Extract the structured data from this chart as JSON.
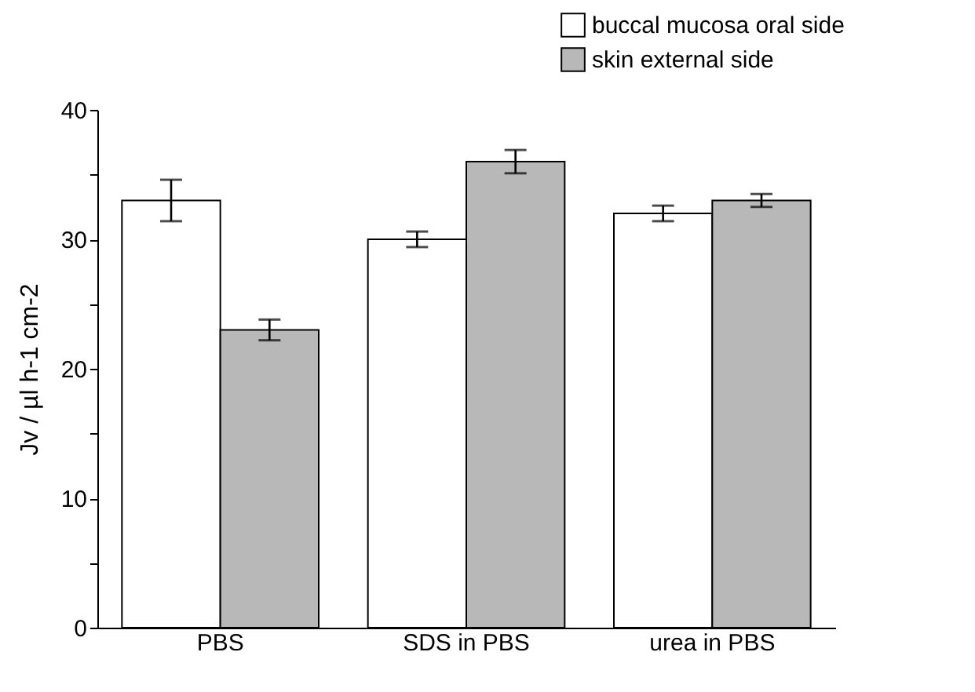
{
  "chart_data": {
    "type": "bar",
    "ylabel": "Jv / µl h-1 cm-2",
    "categories": [
      "PBS",
      "SDS in PBS",
      "urea in PBS"
    ],
    "series": [
      {
        "name": "buccal mucosa oral side",
        "color": "#ffffff",
        "values": [
          33,
          30,
          32
        ],
        "errors": [
          1.6,
          0.6,
          0.6
        ]
      },
      {
        "name": "skin external side",
        "color": "#b8b8b8",
        "values": [
          23,
          36,
          33
        ],
        "errors": [
          0.8,
          0.9,
          0.5
        ]
      }
    ],
    "ylim": [
      0,
      40
    ],
    "yticks": [
      0,
      {
        "value": 5,
        "label": null
      },
      10,
      {
        "value": 15,
        "label": null
      },
      20,
      {
        "value": 25,
        "label": null
      },
      30,
      {
        "value": 35,
        "label": null
      },
      40
    ],
    "legend": "top right",
    "grid": false
  }
}
